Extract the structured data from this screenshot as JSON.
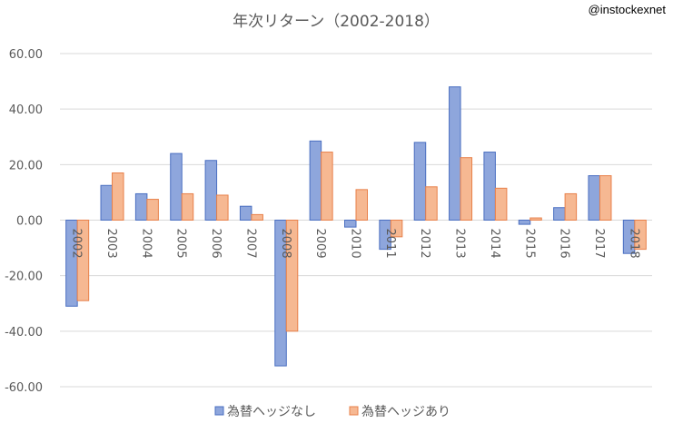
{
  "watermark": "@instockexnet",
  "chart_data": {
    "type": "bar",
    "title": "年次リターン（2002-2018）",
    "categories": [
      "2002",
      "2003",
      "2004",
      "2005",
      "2006",
      "2007",
      "2008",
      "2009",
      "2010",
      "2011",
      "2012",
      "2013",
      "2014",
      "2015",
      "2016",
      "2017",
      "2018"
    ],
    "series": [
      {
        "name": "為替ヘッジなし",
        "color": "#8ea6dc",
        "stroke": "#4a6fc1",
        "values": [
          -31.0,
          12.5,
          9.5,
          24.0,
          21.5,
          5.0,
          -52.5,
          28.5,
          -2.5,
          -10.5,
          28.0,
          48.0,
          24.5,
          -1.5,
          4.5,
          16.0,
          -12.0
        ]
      },
      {
        "name": "為替ヘッジあり",
        "color": "#f6b892",
        "stroke": "#e8804a",
        "values": [
          -29.0,
          17.0,
          7.5,
          9.5,
          9.0,
          2.0,
          -40.0,
          24.5,
          11.0,
          -6.0,
          12.0,
          22.5,
          11.5,
          0.8,
          9.5,
          16.0,
          -10.5
        ]
      }
    ],
    "yticks": [
      "60.00",
      "40.00",
      "20.00",
      "0.00",
      "-20.00",
      "-40.00",
      "-60.00"
    ],
    "ylim": [
      -60,
      60
    ],
    "grid": true,
    "legend": "bottom"
  }
}
